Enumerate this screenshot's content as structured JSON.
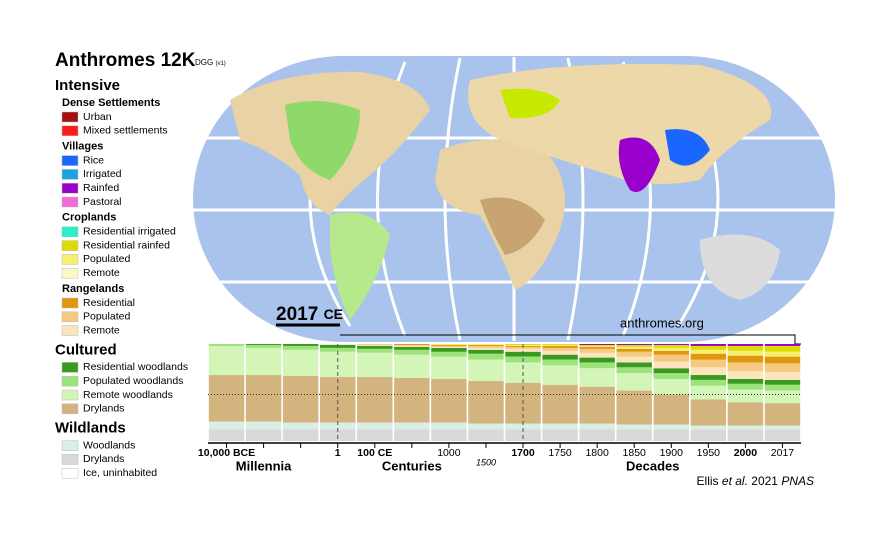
{
  "header": {
    "title": "Anthromes 12K",
    "tag": "DGG",
    "version": "(v1)"
  },
  "legend": {
    "groups": [
      {
        "title": "Intensive",
        "subgroups": [
          {
            "title": "Dense Settlements",
            "items": [
              {
                "label": "Urban",
                "color": "#a50f0f"
              },
              {
                "label": "Mixed settlements",
                "color": "#ff1a1a"
              }
            ]
          },
          {
            "title": "Villages",
            "items": [
              {
                "label": "Rice",
                "color": "#1a66ff"
              },
              {
                "label": "Irrigated",
                "color": "#1aa3e0"
              },
              {
                "label": "Rainfed",
                "color": "#9a00cc"
              },
              {
                "label": "Pastoral",
                "color": "#f06ad8"
              }
            ]
          },
          {
            "title": "Croplands",
            "items": [
              {
                "label": "Residential irrigated",
                "color": "#29f0c8"
              },
              {
                "label": "Residential rainfed",
                "color": "#dcdc00"
              },
              {
                "label": "Populated",
                "color": "#f7f06e"
              },
              {
                "label": "Remote",
                "color": "#fdf8c8"
              }
            ]
          },
          {
            "title": "Rangelands",
            "items": [
              {
                "label": "Residential",
                "color": "#e0960f"
              },
              {
                "label": "Populated",
                "color": "#f7c87f"
              },
              {
                "label": "Remote",
                "color": "#fbe5bd"
              }
            ]
          }
        ]
      },
      {
        "title": "Cultured",
        "subgroups": [
          {
            "items": [
              {
                "label": "Residential woodlands",
                "color": "#3a9a1e"
              },
              {
                "label": "Populated woodlands",
                "color": "#9be37a"
              },
              {
                "label": "Remote woodlands",
                "color": "#d4f5b8"
              },
              {
                "label": "Drylands",
                "color": "#d3b47e"
              }
            ]
          }
        ]
      },
      {
        "title": "Wildlands",
        "subgroups": [
          {
            "items": [
              {
                "label": "Woodlands",
                "color": "#d9efe6"
              },
              {
                "label": "Drylands",
                "color": "#d9d9d9"
              },
              {
                "label": "Ice, uninhabited",
                "color": "#ffffff"
              }
            ]
          }
        ]
      }
    ]
  },
  "map": {
    "year": "2017",
    "era": "CE",
    "site": "anthromes.org"
  },
  "chart_data": {
    "type": "stacked_bar",
    "categories": [
      "10,000 BCE",
      null,
      null,
      "1",
      "100 CE",
      null,
      "1000",
      "1500",
      "1700",
      "1750",
      "1800",
      "1850",
      "1900",
      "1950",
      "2000",
      "2017"
    ],
    "periods": [
      "Millennia",
      "Centuries",
      "Decades"
    ],
    "series": [
      {
        "color": "#d9d9d9",
        "values": [
          12,
          12,
          12,
          12,
          12,
          12,
          12,
          12,
          12,
          12,
          12,
          12,
          12,
          12,
          12,
          12
        ]
      },
      {
        "color": "#d9efe6",
        "values": [
          8,
          8,
          7,
          7,
          7,
          7,
          7,
          6,
          6,
          6,
          6,
          5,
          5,
          4,
          4,
          4
        ]
      },
      {
        "color": "#d3b47e",
        "values": [
          48,
          48,
          48,
          47,
          47,
          46,
          45,
          44,
          42,
          40,
          38,
          35,
          31,
          27,
          24,
          23
        ]
      },
      {
        "color": "#d4f5b8",
        "values": [
          30,
          28,
          27,
          26,
          25,
          24,
          23,
          22,
          21,
          20,
          19,
          18,
          16,
          14,
          13,
          13
        ]
      },
      {
        "color": "#9be37a",
        "values": [
          2,
          3,
          4,
          4,
          4,
          5,
          5,
          6,
          6,
          6,
          6,
          6,
          6,
          6,
          6,
          6
        ]
      },
      {
        "color": "#3a9a1e",
        "values": [
          0,
          1,
          2,
          3,
          3,
          3,
          4,
          4,
          5,
          5,
          5,
          5,
          5,
          5,
          5,
          5
        ]
      },
      {
        "color": "#fbe5bd",
        "values": [
          0,
          0,
          0,
          1,
          1,
          1,
          1,
          2,
          3,
          4,
          5,
          6,
          7,
          8,
          8,
          8
        ]
      },
      {
        "color": "#f7c87f",
        "values": [
          0,
          0,
          0,
          0,
          1,
          1,
          1,
          2,
          2,
          3,
          4,
          5,
          7,
          8,
          9,
          9
        ]
      },
      {
        "color": "#e0960f",
        "values": [
          0,
          0,
          0,
          0,
          0,
          1,
          1,
          1,
          1,
          2,
          2,
          3,
          4,
          6,
          7,
          7
        ]
      },
      {
        "color": "#f7f06e",
        "values": [
          0,
          0,
          0,
          0,
          0,
          0,
          1,
          1,
          1,
          1,
          1,
          2,
          3,
          4,
          5,
          5
        ]
      },
      {
        "color": "#dcdc00",
        "values": [
          0,
          0,
          0,
          0,
          0,
          0,
          0,
          0,
          1,
          1,
          1,
          2,
          3,
          4,
          5,
          6
        ]
      },
      {
        "color": "#9a00cc",
        "values": [
          0,
          0,
          0,
          0,
          0,
          0,
          0,
          0,
          0,
          0,
          1,
          1,
          1,
          2,
          2,
          2
        ]
      }
    ],
    "ylim": [
      0,
      100
    ]
  },
  "credit": {
    "author": "Ellis",
    "etal": "et al.",
    "year": "2021",
    "journal": "PNAS"
  }
}
